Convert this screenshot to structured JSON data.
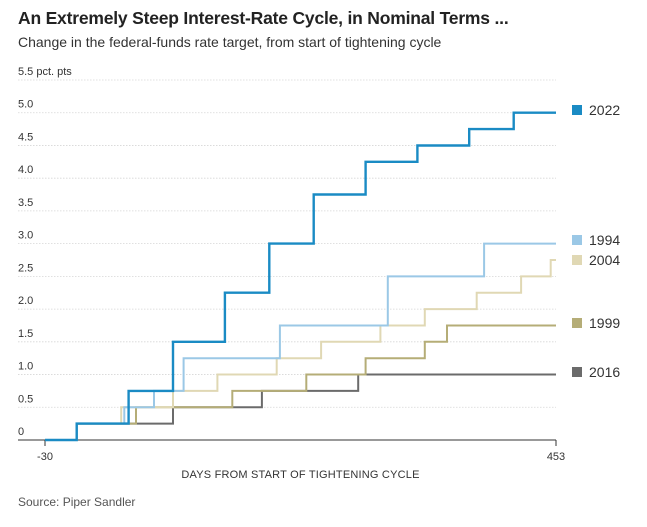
{
  "title": "An Extremely Steep Interest-Rate Cycle, in Nominal Terms ...",
  "subtitle": "Change in the federal-funds rate target, from start of tightening cycle",
  "source": "Source: Piper Sandler",
  "chart_data": {
    "type": "line",
    "step": true,
    "xlabel": "DAYS FROM START OF TIGHTENING CYCLE",
    "ylabel": "pct. pts",
    "xlim": [
      -30,
      453
    ],
    "ylim": [
      0,
      5.5
    ],
    "x_ticks": [
      -30,
      453
    ],
    "y_ticks": [
      0,
      0.5,
      1.0,
      1.5,
      2.0,
      2.5,
      3.0,
      3.5,
      4.0,
      4.5,
      5.0,
      5.5
    ],
    "y_tick_labels": [
      "0",
      "0.5",
      "1.0",
      "1.5",
      "2.0",
      "2.5",
      "3.0",
      "3.5",
      "4.0",
      "4.5",
      "5.0",
      "5.5 pct. pts"
    ],
    "grid": "horizontal",
    "legend": "right",
    "series": [
      {
        "name": "2016",
        "color": "#6b6b6b",
        "points": [
          [
            -30,
            0
          ],
          [
            0,
            0
          ],
          [
            0,
            0.25
          ],
          [
            91,
            0.25
          ],
          [
            91,
            0.5
          ],
          [
            175,
            0.5
          ],
          [
            175,
            0.75
          ],
          [
            266,
            0.75
          ],
          [
            266,
            1.0
          ],
          [
            453,
            1.0
          ]
        ]
      },
      {
        "name": "1999",
        "color": "#b5ad77",
        "points": [
          [
            -30,
            0
          ],
          [
            0,
            0
          ],
          [
            0,
            0.25
          ],
          [
            56,
            0.25
          ],
          [
            56,
            0.5
          ],
          [
            147,
            0.5
          ],
          [
            147,
            0.75
          ],
          [
            217,
            0.75
          ],
          [
            217,
            1.0
          ],
          [
            273,
            1.0
          ],
          [
            273,
            1.25
          ],
          [
            329,
            1.25
          ],
          [
            329,
            1.5
          ],
          [
            350,
            1.5
          ],
          [
            350,
            1.75
          ],
          [
            453,
            1.75
          ]
        ]
      },
      {
        "name": "2004",
        "color": "#e0d8b4",
        "points": [
          [
            -30,
            0
          ],
          [
            0,
            0
          ],
          [
            0,
            0.25
          ],
          [
            42,
            0.25
          ],
          [
            42,
            0.5
          ],
          [
            91,
            0.5
          ],
          [
            91,
            0.75
          ],
          [
            133,
            0.75
          ],
          [
            133,
            1.0
          ],
          [
            189,
            1.0
          ],
          [
            189,
            1.25
          ],
          [
            231,
            1.25
          ],
          [
            231,
            1.5
          ],
          [
            287,
            1.5
          ],
          [
            287,
            1.75
          ],
          [
            329,
            1.75
          ],
          [
            329,
            2.0
          ],
          [
            378,
            2.0
          ],
          [
            378,
            2.25
          ],
          [
            420,
            2.25
          ],
          [
            420,
            2.5
          ],
          [
            448,
            2.5
          ],
          [
            448,
            2.75
          ],
          [
            453,
            2.75
          ]
        ]
      },
      {
        "name": "1994",
        "color": "#9bc8e6",
        "points": [
          [
            -30,
            0
          ],
          [
            0,
            0
          ],
          [
            0,
            0.25
          ],
          [
            45,
            0.25
          ],
          [
            45,
            0.5
          ],
          [
            73,
            0.5
          ],
          [
            73,
            0.75
          ],
          [
            101,
            0.75
          ],
          [
            101,
            1.25
          ],
          [
            192,
            1.25
          ],
          [
            192,
            1.75
          ],
          [
            294,
            1.75
          ],
          [
            294,
            2.5
          ],
          [
            385,
            2.5
          ],
          [
            385,
            3.0
          ],
          [
            453,
            3.0
          ]
        ]
      },
      {
        "name": "2022",
        "color": "#1a8bc4",
        "points": [
          [
            -30,
            0
          ],
          [
            0,
            0
          ],
          [
            0,
            0.25
          ],
          [
            49,
            0.25
          ],
          [
            49,
            0.75
          ],
          [
            91,
            0.75
          ],
          [
            91,
            1.5
          ],
          [
            140,
            1.5
          ],
          [
            140,
            2.25
          ],
          [
            182,
            2.25
          ],
          [
            182,
            3.0
          ],
          [
            224,
            3.0
          ],
          [
            224,
            3.75
          ],
          [
            273,
            3.75
          ],
          [
            273,
            4.25
          ],
          [
            322,
            4.25
          ],
          [
            322,
            4.5
          ],
          [
            371,
            4.5
          ],
          [
            371,
            4.75
          ],
          [
            413,
            4.75
          ],
          [
            413,
            5.0
          ],
          [
            453,
            5.0
          ]
        ]
      }
    ],
    "legend_order": [
      "2022",
      "1994",
      "2004",
      "1999",
      "2016"
    ]
  }
}
